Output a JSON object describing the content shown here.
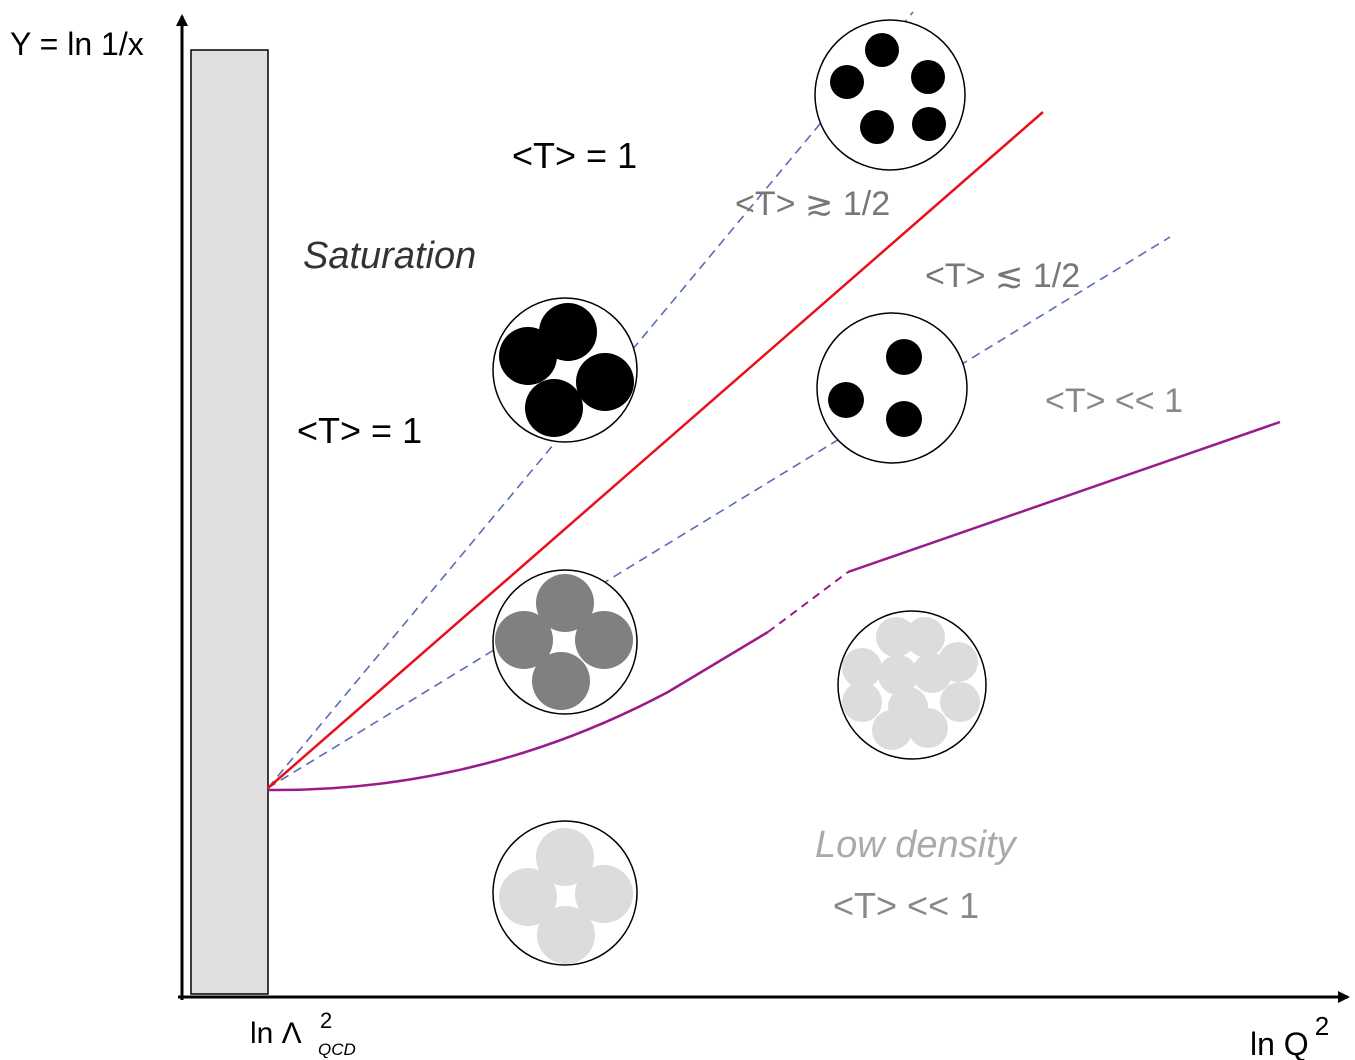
{
  "axes": {
    "y_label": "Y = ln 1/x",
    "x_label": {
      "base": "ln Q",
      "sup": "2"
    },
    "x_marker": {
      "base": "ln Λ",
      "sup": "2",
      "sub": "QCD"
    }
  },
  "labels": {
    "saturation_top": "<T> = 1",
    "saturation": "Saturation",
    "saturation_left": "<T> = 1",
    "above_half": "<T> ≳ 1/2",
    "below_half": "<T> ≲ 1/2",
    "dilute_right": "<T> << 1",
    "low_density": "Low density",
    "low_density_value": "<T> << 1"
  }
}
